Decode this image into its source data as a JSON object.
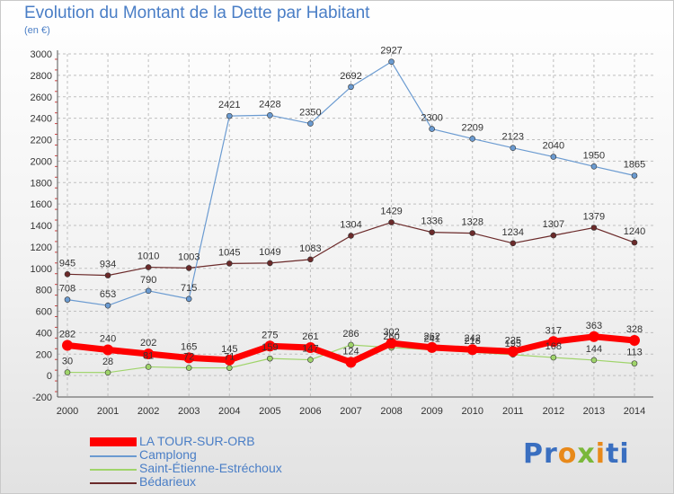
{
  "title": "Evolution du Montant de la Dette par Habitant",
  "unit": "(en €)",
  "logo": {
    "text": "Proxiti",
    "parts": [
      "Pr",
      "o",
      "x",
      "i",
      "ti"
    ]
  },
  "colors": {
    "text": "#4a7ec6",
    "grid": "#bfbfbf",
    "axis": "#555555",
    "labels": "#333333"
  },
  "chart_data": {
    "type": "line",
    "x": [
      2000,
      2001,
      2002,
      2003,
      2004,
      2005,
      2006,
      2007,
      2008,
      2009,
      2010,
      2011,
      2012,
      2013,
      2014
    ],
    "ylim": [
      -200,
      3000
    ],
    "yticks": [
      -200,
      0,
      200,
      400,
      600,
      800,
      1000,
      1200,
      1400,
      1600,
      1800,
      2000,
      2200,
      2400,
      2600,
      2800,
      3000
    ],
    "grid": true,
    "legend": "bottom-left",
    "series": [
      {
        "name": "LA TOUR-SUR-ORB",
        "color": "#ff0000",
        "values": [
          282,
          240,
          202,
          165,
          145,
          275,
          261,
          124,
          302,
          262,
          242,
          225,
          317,
          363,
          328
        ]
      },
      {
        "name": "Camplong",
        "color": "#6b9bd1",
        "values": [
          708,
          653,
          790,
          715,
          2421,
          2428,
          2350,
          2692,
          2927,
          2300,
          2209,
          2123,
          2040,
          1950,
          1865
        ]
      },
      {
        "name": "Saint-Étienne-Estréchoux",
        "color": "#9fd46a",
        "values": [
          30,
          28,
          81,
          72,
          71,
          159,
          147,
          286,
          260,
          241,
          218,
          195,
          168,
          144,
          113
        ]
      },
      {
        "name": "Bédarieux",
        "color": "#6b2a2a",
        "values": [
          945,
          934,
          1010,
          1003,
          1045,
          1049,
          1083,
          1304,
          1429,
          1336,
          1328,
          1234,
          1307,
          1379,
          1240
        ]
      }
    ]
  }
}
